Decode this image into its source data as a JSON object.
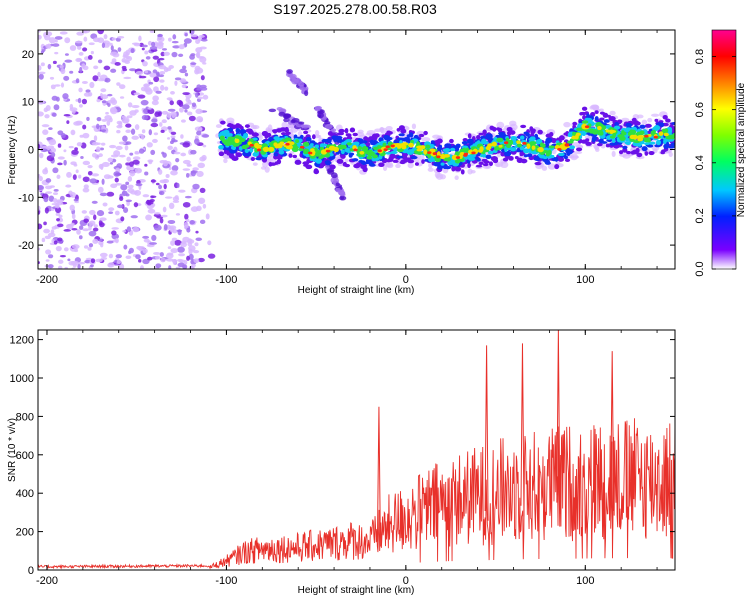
{
  "title": "S197.2025.278.00.58.R03",
  "colors": {
    "snr_line": "#e8302a",
    "scatter_faint": "#d8b8ff",
    "scatter_mid": "#a070f0",
    "scatter_dark": "#7a20e0"
  },
  "chart_data": [
    {
      "type": "heatmap",
      "name": "spectrogram",
      "xlabel": "Height of straight line (km)",
      "ylabel": "Frequency (Hz)",
      "xlim": [
        -205,
        150
      ],
      "ylim": [
        -25,
        25
      ],
      "xticks": [
        -200,
        -100,
        0,
        100
      ],
      "yticks": [
        -20,
        -10,
        0,
        10,
        20
      ],
      "ridge": [
        [
          -100,
          2
        ],
        [
          -90,
          1.5
        ],
        [
          -80,
          0
        ],
        [
          -70,
          1
        ],
        [
          -60,
          1
        ],
        [
          -50,
          -1
        ],
        [
          -40,
          0
        ],
        [
          -30,
          0.5
        ],
        [
          -20,
          -1
        ],
        [
          -10,
          0.5
        ],
        [
          0,
          1
        ],
        [
          10,
          0
        ],
        [
          20,
          -1.5
        ],
        [
          30,
          -1.5
        ],
        [
          40,
          0
        ],
        [
          50,
          1
        ],
        [
          60,
          1.5
        ],
        [
          70,
          1
        ],
        [
          80,
          -0.5
        ],
        [
          90,
          1
        ],
        [
          100,
          5
        ],
        [
          110,
          4
        ],
        [
          120,
          3
        ],
        [
          130,
          2.5
        ],
        [
          140,
          3
        ],
        [
          150,
          3
        ]
      ],
      "colorbar": {
        "label": "Normalized spectral amplitude",
        "range": [
          0,
          0.9
        ],
        "ticks": [
          0.0,
          0.2,
          0.4,
          0.6,
          0.8
        ]
      }
    },
    {
      "type": "line",
      "name": "snr",
      "xlabel": "Height of straight line (km)",
      "ylabel": "SNR (10 * v/v)",
      "xlim": [
        -205,
        150
      ],
      "ylim": [
        0,
        1250
      ],
      "xticks": [
        -200,
        -100,
        0,
        100
      ],
      "yticks": [
        0,
        200,
        400,
        600,
        800,
        1000,
        1200
      ],
      "envelope": {
        "x": [
          -205,
          -110,
          -100,
          -90,
          -80,
          -60,
          -40,
          -30,
          -20,
          -10,
          0,
          10,
          20,
          40,
          60,
          80,
          100,
          120,
          140,
          150
        ],
        "y": [
          10,
          15,
          60,
          120,
          140,
          150,
          180,
          200,
          190,
          300,
          350,
          400,
          450,
          500,
          550,
          580,
          600,
          620,
          600,
          620
        ]
      },
      "peaks": [
        {
          "x": -15,
          "y": 850
        },
        {
          "x": 45,
          "y": 1170
        },
        {
          "x": 65,
          "y": 1180
        },
        {
          "x": 85,
          "y": 1250
        },
        {
          "x": 115,
          "y": 1140
        }
      ]
    }
  ]
}
